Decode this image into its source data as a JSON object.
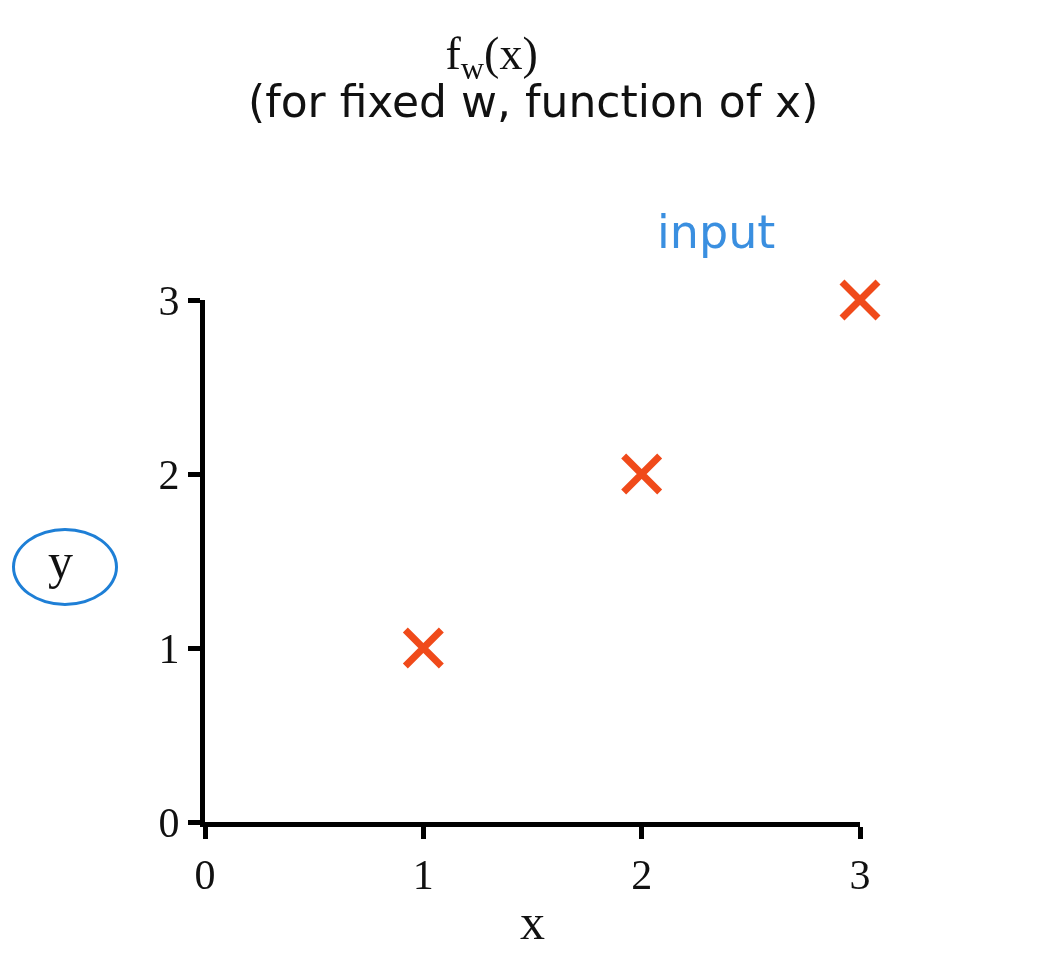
{
  "chart_data": {
    "type": "scatter",
    "title": "f$_{w}$(x)",
    "subtitle": "(for fixed w, function of x)",
    "xlabel": "x",
    "ylabel": "y",
    "annotations": [
      "input"
    ],
    "x": [
      1,
      2,
      3
    ],
    "series": [
      {
        "color": "#f04a1a",
        "values": [
          1,
          2,
          3
        ]
      }
    ],
    "xlim": [
      0,
      3
    ],
    "xticks": [
      0,
      1,
      2,
      3
    ],
    "ylim": [
      0,
      3
    ],
    "yticks": [
      0,
      1,
      2,
      3
    ],
    "marker": "cross",
    "grid": false
  }
}
